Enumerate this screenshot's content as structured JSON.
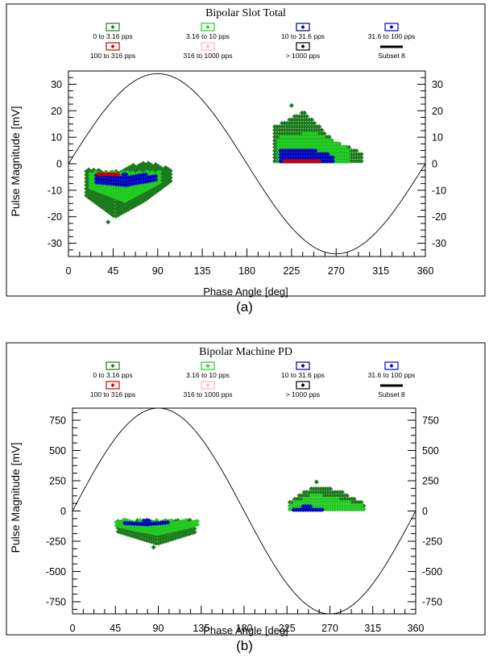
{
  "captions": {
    "a": "(a)",
    "b": "(b)"
  },
  "legend_entries": [
    {
      "label": "0 to 3.16 pps",
      "color": "#1e7a1e",
      "kind": "box"
    },
    {
      "label": "3.16 to 10 pps",
      "color": "#22cc22",
      "kind": "box"
    },
    {
      "label": "10 to 31.6 pps",
      "color": "#000080",
      "kind": "box"
    },
    {
      "label": "31.6 to 100 pps",
      "color": "#0000cc",
      "kind": "box"
    },
    {
      "label": "100 to 316 pps",
      "color": "#cc0000",
      "kind": "box"
    },
    {
      "label": "316 to 1000 pps",
      "color": "#ffb6c1",
      "kind": "box"
    },
    {
      "label": "> 1000 pps",
      "color": "#000000",
      "kind": "box"
    },
    {
      "label": "Subset 8",
      "color": "#000000",
      "kind": "line"
    }
  ],
  "chart_data": [
    {
      "id": "a",
      "type": "scatter",
      "title": "Bipolar Slot Total",
      "xlabel": "Phase Angle [deg]",
      "ylabel": "Pulse Magnitude [mV]",
      "xlim": [
        0,
        360
      ],
      "ylim": [
        -35,
        35
      ],
      "xticks": [
        0,
        45,
        90,
        135,
        180,
        225,
        270,
        315,
        360
      ],
      "yticks": [
        30,
        20,
        10,
        0,
        -10,
        -20,
        -30
      ],
      "grid": false,
      "legend_position": "top",
      "sine_amplitude": 34,
      "clusters": [
        {
          "name": "0 to 3.16 pps",
          "color": "#1e7a1e",
          "x": [
            18,
            105
          ],
          "top": [
            -2,
            -3,
            1,
            -2
          ],
          "bottom": [
            -12,
            -20,
            -14,
            -6
          ],
          "step_x": 2.5,
          "step_y": 1.3
        },
        {
          "name": "3.16 to 10 pps",
          "color": "#22cc22",
          "x": [
            22,
            92
          ],
          "top": [
            -3,
            -3,
            -3
          ],
          "bottom": [
            -9,
            -14,
            -7
          ],
          "step_x": 2.5,
          "step_y": 1.3
        },
        {
          "name": "31.6 to 100 pps",
          "color": "#0000cc",
          "x": [
            28,
            88
          ],
          "top": [
            -4,
            -4,
            -4
          ],
          "bottom": [
            -7,
            -8,
            -6
          ],
          "step_x": 2.5,
          "step_y": 1.3
        },
        {
          "name": "100 to 316 pps",
          "color": "#cc0000",
          "x": [
            30,
            52
          ],
          "top": [
            -3,
            -3
          ],
          "bottom": [
            -4,
            -4
          ],
          "step_x": 2.5,
          "step_y": 1.3
        },
        {
          "name": "0 to 3.16 pps",
          "color": "#1e7a1e",
          "x": [
            208,
            296
          ],
          "top": [
            14,
            20,
            9,
            4
          ],
          "bottom": [
            1,
            1,
            1,
            1
          ],
          "step_x": 2.5,
          "step_y": 1.3
        },
        {
          "name": "3.16 to 10 pps",
          "color": "#22cc22",
          "x": [
            212,
            282
          ],
          "top": [
            10,
            12,
            6
          ],
          "bottom": [
            1,
            1,
            1
          ],
          "step_x": 2.5,
          "step_y": 1.3
        },
        {
          "name": "31.6 to 100 pps",
          "color": "#0000cc",
          "x": [
            214,
            268
          ],
          "top": [
            5,
            6,
            3
          ],
          "bottom": [
            1,
            1,
            1
          ],
          "step_x": 2.5,
          "step_y": 1.3
        },
        {
          "name": "100 to 316 pps",
          "color": "#cc0000",
          "x": [
            218,
            255
          ],
          "top": [
            2,
            2,
            2
          ],
          "bottom": [
            1,
            1,
            1
          ],
          "step_x": 2.5,
          "step_y": 1.3
        }
      ],
      "outliers": [
        {
          "x": 40,
          "y": -22,
          "color": "#1e7a1e"
        },
        {
          "x": 225,
          "y": 22,
          "color": "#1e7a1e"
        }
      ]
    },
    {
      "id": "b",
      "type": "scatter",
      "title": "Bipolar Machine PD",
      "xlabel": "Phase Angle [deg]",
      "ylabel": "Pulse Magnitude [mV]",
      "xlim": [
        0,
        360
      ],
      "ylim": [
        -850,
        850
      ],
      "xticks": [
        0,
        45,
        90,
        135,
        180,
        225,
        270,
        315,
        360
      ],
      "yticks": [
        750,
        500,
        250,
        0,
        -250,
        -500,
        -750
      ],
      "grid": false,
      "legend_position": "top",
      "sine_amplitude": 850,
      "clusters": [
        {
          "name": "0 to 3.16 pps",
          "color": "#1e7a1e",
          "x": [
            48,
            130
          ],
          "top": [
            -75,
            -75,
            -75
          ],
          "bottom": [
            -170,
            -270,
            -170
          ],
          "step_x": 2.5,
          "step_y": 28
        },
        {
          "name": "3.16 to 10 pps",
          "color": "#22cc22",
          "x": [
            46,
            132
          ],
          "top": [
            -75,
            -75,
            -75
          ],
          "bottom": [
            -120,
            -190,
            -110
          ],
          "step_x": 2.5,
          "step_y": 28
        },
        {
          "name": "31.6 to 100 pps",
          "color": "#0000cc",
          "x": [
            55,
            100
          ],
          "top": [
            -80,
            -80,
            -80
          ],
          "bottom": [
            -100,
            -110,
            -95
          ],
          "step_x": 2.5,
          "step_y": 28
        },
        {
          "name": "0 to 3.16 pps",
          "color": "#1e7a1e",
          "x": [
            228,
            306
          ],
          "top": [
            80,
            210,
            170,
            60
          ],
          "bottom": [
            15,
            15,
            15,
            15
          ],
          "step_x": 2.5,
          "step_y": 28
        },
        {
          "name": "3.16 to 10 pps",
          "color": "#22cc22",
          "x": [
            228,
            306
          ],
          "top": [
            60,
            140,
            100,
            40
          ],
          "bottom": [
            15,
            15,
            15,
            15
          ],
          "step_x": 2.5,
          "step_y": 28
        },
        {
          "name": "31.6 to 100 pps",
          "color": "#0000cc",
          "x": [
            232,
            262
          ],
          "top": [
            35,
            40,
            30
          ],
          "bottom": [
            10,
            10,
            10
          ],
          "step_x": 2.5,
          "step_y": 28
        }
      ],
      "outliers": [
        {
          "x": 85,
          "y": -300,
          "color": "#1e7a1e"
        },
        {
          "x": 256,
          "y": 240,
          "color": "#1e7a1e"
        }
      ]
    }
  ]
}
